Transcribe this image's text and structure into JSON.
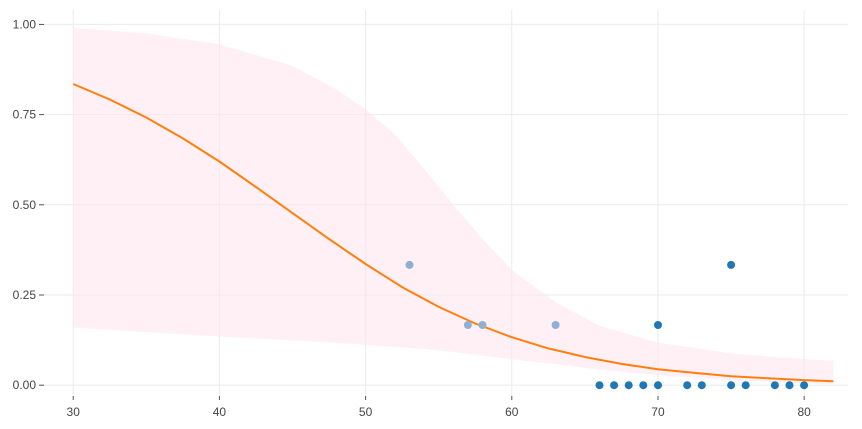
{
  "chart_data": {
    "type": "scatter",
    "xlim": [
      28,
      83
    ],
    "ylim": [
      -0.03,
      1.04
    ],
    "x_ticks": [
      30,
      40,
      50,
      60,
      70,
      80
    ],
    "y_ticks": [
      0,
      0.25,
      0.5,
      0.75,
      1
    ],
    "x_tick_labels": [
      "30",
      "40",
      "50",
      "60",
      "70",
      "80"
    ],
    "y_tick_labels": [
      "0.00",
      "0.25",
      "0.50",
      "0.75",
      "1.00"
    ],
    "grid": true,
    "colors": {
      "curve": "#ff7f0e",
      "band": "#ffe4ec",
      "points_group_a": "#1f77b4",
      "points_group_b": "#8fb0d4",
      "grid": "#ebebeb",
      "tick_text": "#444444"
    },
    "series": [
      {
        "kind": "points",
        "color_key": "points_group_a",
        "x": [
          66,
          67,
          68,
          69,
          70,
          70,
          72,
          73,
          75,
          75,
          76,
          78,
          79,
          80
        ],
        "y": [
          0,
          0,
          0,
          0,
          0,
          0.1667,
          0,
          0,
          0,
          0.3333,
          0,
          0,
          0,
          0
        ]
      },
      {
        "kind": "points",
        "color_key": "points_group_b",
        "x": [
          53,
          57,
          58,
          63
        ],
        "y": [
          0.3333,
          0.1667,
          0.1667,
          0.1667
        ]
      },
      {
        "kind": "line",
        "color_key": "curve",
        "x": [
          30,
          32.5,
          35,
          37.5,
          40,
          42.5,
          45,
          47.5,
          50,
          52.5,
          55,
          57.5,
          60,
          62.5,
          65,
          67.5,
          70,
          72.5,
          75,
          77.5,
          80,
          82
        ],
        "y": [
          0.835,
          0.792,
          0.742,
          0.684,
          0.62,
          0.549,
          0.477,
          0.405,
          0.336,
          0.272,
          0.217,
          0.171,
          0.133,
          0.102,
          0.078,
          0.059,
          0.044,
          0.034,
          0.025,
          0.019,
          0.014,
          0.011
        ]
      },
      {
        "kind": "band",
        "color_key": "band",
        "x": [
          30,
          35,
          40,
          45,
          48,
          50,
          52,
          54,
          56,
          58,
          60,
          63,
          66,
          70,
          75,
          80,
          82
        ],
        "upper": [
          0.99,
          0.975,
          0.945,
          0.885,
          0.82,
          0.765,
          0.695,
          0.6,
          0.5,
          0.405,
          0.32,
          0.23,
          0.165,
          0.118,
          0.088,
          0.072,
          0.068
        ],
        "lower": [
          0.16,
          0.147,
          0.135,
          0.124,
          0.117,
          0.112,
          0.106,
          0.1,
          0.092,
          0.082,
          0.072,
          0.058,
          0.043,
          0.028,
          0.014,
          0.005,
          0.003
        ]
      }
    ]
  }
}
